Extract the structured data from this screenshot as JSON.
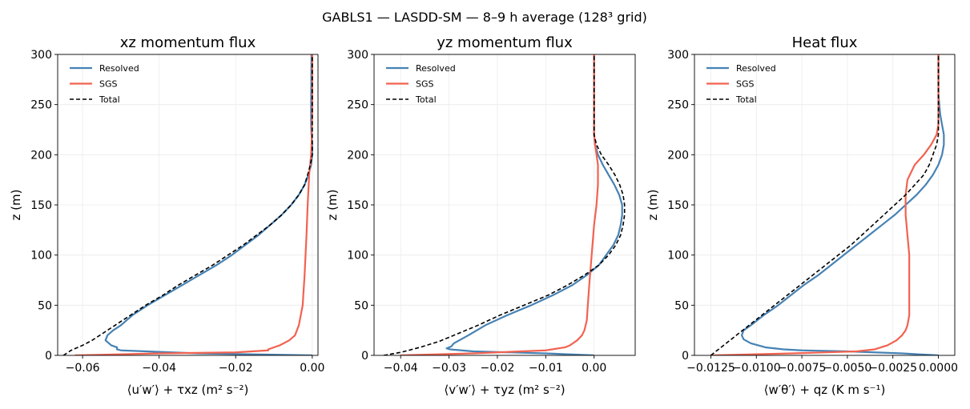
{
  "figure": {
    "suptitle": "GABLS1 — LASDD-SM — 8–9 h average (128³ grid)"
  },
  "series_styles": {
    "Resolved": {
      "color": "#4682b4",
      "dash": ""
    },
    "SGS": {
      "color": "#f26250",
      "dash": ""
    },
    "Total": {
      "color": "#000000",
      "dash": "5,3"
    }
  },
  "chart_data": [
    {
      "type": "line",
      "title": "xz momentum flux",
      "xlabel": "⟨u′w′⟩ + τxz (m² s⁻²)",
      "ylabel": "z (m)",
      "xlim": [
        -0.0665,
        0.0015
      ],
      "ylim": [
        0,
        300
      ],
      "xticks": [
        -0.06,
        -0.04,
        -0.02,
        0.0
      ],
      "xtick_labels": [
        "−0.06",
        "−0.04",
        "−0.02",
        "0.00"
      ],
      "yticks": [
        0,
        50,
        100,
        150,
        200,
        250,
        300
      ],
      "ytick_labels": [
        "0",
        "50",
        "100",
        "150",
        "200",
        "250",
        "300"
      ],
      "grid": true,
      "legend": "top-left",
      "series": [
        {
          "name": "Resolved",
          "points": [
            [
              0,
              0
            ],
            [
              -0.03,
              2
            ],
            [
              -0.05,
              5
            ],
            [
              -0.051,
              6
            ],
            [
              -0.051,
              8
            ],
            [
              -0.0525,
              10
            ],
            [
              -0.054,
              15
            ],
            [
              -0.0535,
              20
            ],
            [
              -0.052,
              25
            ],
            [
              -0.05,
              30
            ],
            [
              -0.047,
              40
            ],
            [
              -0.043,
              50
            ],
            [
              -0.0385,
              60
            ],
            [
              -0.034,
              70
            ],
            [
              -0.0295,
              80
            ],
            [
              -0.025,
              90
            ],
            [
              -0.021,
              100
            ],
            [
              -0.0175,
              110
            ],
            [
              -0.014,
              120
            ],
            [
              -0.011,
              130
            ],
            [
              -0.008,
              140
            ],
            [
              -0.0055,
              150
            ],
            [
              -0.0035,
              160
            ],
            [
              -0.002,
              170
            ],
            [
              -0.001,
              180
            ],
            [
              -0.0003,
              190
            ],
            [
              0.0,
              200
            ],
            [
              0.0,
              210
            ],
            [
              -0.0002,
              220
            ],
            [
              -0.0003,
              230
            ],
            [
              -0.0003,
              250
            ],
            [
              -0.0002,
              300
            ]
          ]
        },
        {
          "name": "SGS",
          "points": [
            [
              -0.062,
              0
            ],
            [
              -0.04,
              2
            ],
            [
              -0.02,
              3
            ],
            [
              -0.0115,
              5
            ],
            [
              -0.0115,
              6
            ],
            [
              -0.0085,
              10
            ],
            [
              -0.006,
              15
            ],
            [
              -0.0045,
              20
            ],
            [
              -0.0035,
              30
            ],
            [
              -0.0025,
              50
            ],
            [
              -0.002,
              80
            ],
            [
              -0.0015,
              120
            ],
            [
              -0.0012,
              150
            ],
            [
              -0.0008,
              180
            ],
            [
              -0.0003,
              200
            ],
            [
              -0.0001,
              220
            ],
            [
              0.0,
              250
            ],
            [
              0.0,
              300
            ]
          ]
        },
        {
          "name": "Total",
          "points": [
            [
              -0.065,
              0
            ],
            [
              -0.063,
              5
            ],
            [
              -0.06,
              10
            ],
            [
              -0.0575,
              15
            ],
            [
              -0.0555,
              20
            ],
            [
              -0.0535,
              25
            ],
            [
              -0.0515,
              30
            ],
            [
              -0.0475,
              40
            ],
            [
              -0.0435,
              50
            ],
            [
              -0.039,
              60
            ],
            [
              -0.035,
              70
            ],
            [
              -0.0305,
              80
            ],
            [
              -0.026,
              90
            ],
            [
              -0.022,
              100
            ],
            [
              -0.018,
              110
            ],
            [
              -0.0145,
              120
            ],
            [
              -0.011,
              130
            ],
            [
              -0.008,
              140
            ],
            [
              -0.0055,
              150
            ],
            [
              -0.0035,
              160
            ],
            [
              -0.002,
              170
            ],
            [
              -0.0012,
              180
            ],
            [
              -0.0005,
              190
            ],
            [
              0.0,
              200
            ],
            [
              0.0,
              300
            ]
          ]
        }
      ]
    },
    {
      "type": "line",
      "title": "yz momentum flux",
      "xlabel": "⟨v′w′⟩ + τyz (m² s⁻²)",
      "ylabel": "z (m)",
      "xlim": [
        -0.0455,
        0.0085
      ],
      "ylim": [
        0,
        300
      ],
      "xticks": [
        -0.04,
        -0.03,
        -0.02,
        -0.01,
        0.0
      ],
      "xtick_labels": [
        "−0.04",
        "−0.03",
        "−0.02",
        "−0.01",
        "0.00"
      ],
      "yticks": [
        0,
        50,
        100,
        150,
        200,
        250,
        300
      ],
      "ytick_labels": [
        "0",
        "50",
        "100",
        "150",
        "200",
        "250",
        "300"
      ],
      "grid": true,
      "legend": "top-left",
      "series": [
        {
          "name": "Resolved",
          "points": [
            [
              0,
              0
            ],
            [
              -0.01,
              2
            ],
            [
              -0.025,
              4
            ],
            [
              -0.0298,
              6
            ],
            [
              -0.0305,
              7
            ],
            [
              -0.0295,
              9
            ],
            [
              -0.029,
              12
            ],
            [
              -0.026,
              20
            ],
            [
              -0.0225,
              30
            ],
            [
              -0.018,
              40
            ],
            [
              -0.013,
              50
            ],
            [
              -0.0085,
              60
            ],
            [
              -0.0045,
              70
            ],
            [
              -0.0015,
              80
            ],
            [
              0.001,
              90
            ],
            [
              0.0025,
              100
            ],
            [
              0.004,
              110
            ],
            [
              0.005,
              120
            ],
            [
              0.0055,
              130
            ],
            [
              0.0058,
              140
            ],
            [
              0.0058,
              150
            ],
            [
              0.0052,
              160
            ],
            [
              0.0042,
              170
            ],
            [
              0.003,
              180
            ],
            [
              0.0018,
              190
            ],
            [
              0.0008,
              200
            ],
            [
              0.0002,
              210
            ],
            [
              0.0,
              220
            ],
            [
              0.0,
              300
            ]
          ]
        },
        {
          "name": "SGS",
          "points": [
            [
              -0.04,
              0
            ],
            [
              -0.025,
              2
            ],
            [
              -0.01,
              5
            ],
            [
              -0.006,
              8
            ],
            [
              -0.005,
              10
            ],
            [
              -0.0035,
              15
            ],
            [
              -0.0025,
              20
            ],
            [
              -0.002,
              25
            ],
            [
              -0.0015,
              35
            ],
            [
              -0.0013,
              50
            ],
            [
              -0.001,
              70
            ],
            [
              -0.0005,
              100
            ],
            [
              0.0,
              130
            ],
            [
              0.0005,
              150
            ],
            [
              0.0008,
              170
            ],
            [
              0.0008,
              190
            ],
            [
              0.0005,
              200
            ],
            [
              0.0002,
              210
            ],
            [
              0.0,
              220
            ],
            [
              0.0,
              300
            ]
          ]
        },
        {
          "name": "Total",
          "points": [
            [
              -0.0435,
              0
            ],
            [
              -0.04,
              3
            ],
            [
              -0.036,
              8
            ],
            [
              -0.032,
              14
            ],
            [
              -0.029,
              20
            ],
            [
              -0.024,
              30
            ],
            [
              -0.0195,
              40
            ],
            [
              -0.0145,
              50
            ],
            [
              -0.0095,
              60
            ],
            [
              -0.0055,
              70
            ],
            [
              -0.002,
              80
            ],
            [
              0.001,
              90
            ],
            [
              0.003,
              100
            ],
            [
              0.0045,
              110
            ],
            [
              0.0055,
              120
            ],
            [
              0.006,
              130
            ],
            [
              0.0063,
              140
            ],
            [
              0.0063,
              150
            ],
            [
              0.006,
              160
            ],
            [
              0.0053,
              170
            ],
            [
              0.0043,
              180
            ],
            [
              0.003,
              190
            ],
            [
              0.0015,
              200
            ],
            [
              0.0005,
              210
            ],
            [
              0.0,
              220
            ],
            [
              0.0,
              300
            ]
          ]
        }
      ]
    },
    {
      "type": "line",
      "title": "Heat flux",
      "xlabel": "⟨w′θ′⟩ + qz (K m s⁻¹)",
      "ylabel": "z (m)",
      "xlim": [
        -0.0134,
        0.0009
      ],
      "ylim": [
        0,
        300
      ],
      "xticks": [
        -0.0125,
        -0.01,
        -0.0075,
        -0.005,
        -0.0025,
        0.0
      ],
      "xtick_labels": [
        "−0.0125",
        "−0.0100",
        "−0.0075",
        "−0.0050",
        "−0.0025",
        "0.0000"
      ],
      "yticks": [
        0,
        50,
        100,
        150,
        200,
        250,
        300
      ],
      "ytick_labels": [
        "0",
        "50",
        "100",
        "150",
        "200",
        "250",
        "300"
      ],
      "grid": true,
      "legend": "top-left",
      "series": [
        {
          "name": "Resolved",
          "points": [
            [
              0,
              0
            ],
            [
              -0.002,
              2
            ],
            [
              -0.005,
              4
            ],
            [
              -0.0075,
              5
            ],
            [
              -0.0085,
              6
            ],
            [
              -0.0095,
              8
            ],
            [
              -0.0103,
              12
            ],
            [
              -0.0107,
              16
            ],
            [
              -0.0108,
              20
            ],
            [
              -0.0107,
              25
            ],
            [
              -0.0103,
              30
            ],
            [
              -0.0096,
              40
            ],
            [
              -0.0088,
              50
            ],
            [
              -0.0081,
              60
            ],
            [
              -0.0074,
              70
            ],
            [
              -0.0066,
              80
            ],
            [
              -0.0059,
              90
            ],
            [
              -0.0052,
              100
            ],
            [
              -0.0045,
              110
            ],
            [
              -0.0038,
              120
            ],
            [
              -0.0031,
              130
            ],
            [
              -0.0024,
              140
            ],
            [
              -0.0018,
              150
            ],
            [
              -0.0012,
              160
            ],
            [
              -0.0007,
              170
            ],
            [
              -0.0003,
              180
            ],
            [
              0.0,
              190
            ],
            [
              0.0002,
              200
            ],
            [
              0.0003,
              210
            ],
            [
              0.0003,
              220
            ],
            [
              0.0001,
              240
            ],
            [
              0.0,
              260
            ],
            [
              0.0,
              300
            ]
          ]
        },
        {
          "name": "SGS",
          "points": [
            [
              -0.0125,
              0
            ],
            [
              -0.008,
              2
            ],
            [
              -0.0045,
              4
            ],
            [
              -0.0035,
              6
            ],
            [
              -0.0028,
              10
            ],
            [
              -0.0023,
              15
            ],
            [
              -0.002,
              20
            ],
            [
              -0.0018,
              25
            ],
            [
              -0.0017,
              30
            ],
            [
              -0.0016,
              40
            ],
            [
              -0.0016,
              60
            ],
            [
              -0.0016,
              80
            ],
            [
              -0.0016,
              100
            ],
            [
              -0.0017,
              120
            ],
            [
              -0.0018,
              140
            ],
            [
              -0.0018,
              160
            ],
            [
              -0.0017,
              175
            ],
            [
              -0.0013,
              190
            ],
            [
              -0.0008,
              200
            ],
            [
              -0.0004,
              210
            ],
            [
              -0.0001,
              220
            ],
            [
              0.0,
              230
            ],
            [
              0.0,
              300
            ]
          ]
        },
        {
          "name": "Total",
          "points": [
            [
              -0.0125,
              0
            ],
            [
              -0.0118,
              10
            ],
            [
              -0.0111,
              20
            ],
            [
              -0.0104,
              30
            ],
            [
              -0.0097,
              40
            ],
            [
              -0.009,
              50
            ],
            [
              -0.0083,
              60
            ],
            [
              -0.0076,
              70
            ],
            [
              -0.0069,
              80
            ],
            [
              -0.0062,
              90
            ],
            [
              -0.0055,
              100
            ],
            [
              -0.0048,
              110
            ],
            [
              -0.0042,
              120
            ],
            [
              -0.0036,
              130
            ],
            [
              -0.003,
              140
            ],
            [
              -0.0024,
              150
            ],
            [
              -0.0018,
              160
            ],
            [
              -0.0013,
              170
            ],
            [
              -0.0008,
              180
            ],
            [
              -0.0005,
              190
            ],
            [
              -0.0003,
              200
            ],
            [
              -0.0001,
              210
            ],
            [
              0.0,
              220
            ],
            [
              0.0,
              230
            ],
            [
              0.0,
              300
            ]
          ]
        }
      ]
    }
  ]
}
